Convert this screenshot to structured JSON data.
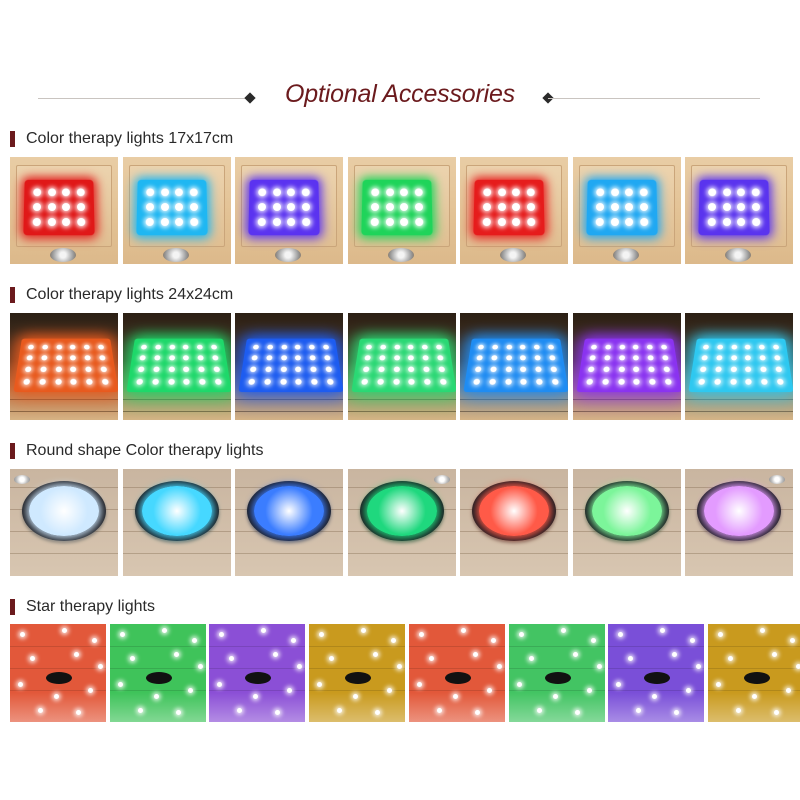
{
  "page_title": "Optional Accessories",
  "sections": [
    {
      "label": "Color therapy lights 17x17cm",
      "colors": [
        "#e01818",
        "#1fb7f2",
        "#5b33f0",
        "#1fd45a",
        "#e61c1c",
        "#20a8f2",
        "#5a34ee"
      ]
    },
    {
      "label": "Color therapy lights 24x24cm",
      "colors": [
        "#e85a1e",
        "#1ed86a",
        "#1d5cf0",
        "#2ad874",
        "#1f8cf2",
        "#8a33f0",
        "#2ec8f0"
      ]
    },
    {
      "label": "Round shape Color therapy lights",
      "colors": [
        "#cfe9ff",
        "#46d8ff",
        "#3b7dff",
        "#1fd87e",
        "#ff5a48",
        "#7cf59a",
        "#e39bff"
      ]
    },
    {
      "label": "Star therapy lights",
      "colors": [
        "#e2583a",
        "#3fc35a",
        "#8b4fd6",
        "#c99a1e",
        "#e2583a",
        "#43c463",
        "#7a4fd8",
        "#c99a1e"
      ]
    }
  ]
}
